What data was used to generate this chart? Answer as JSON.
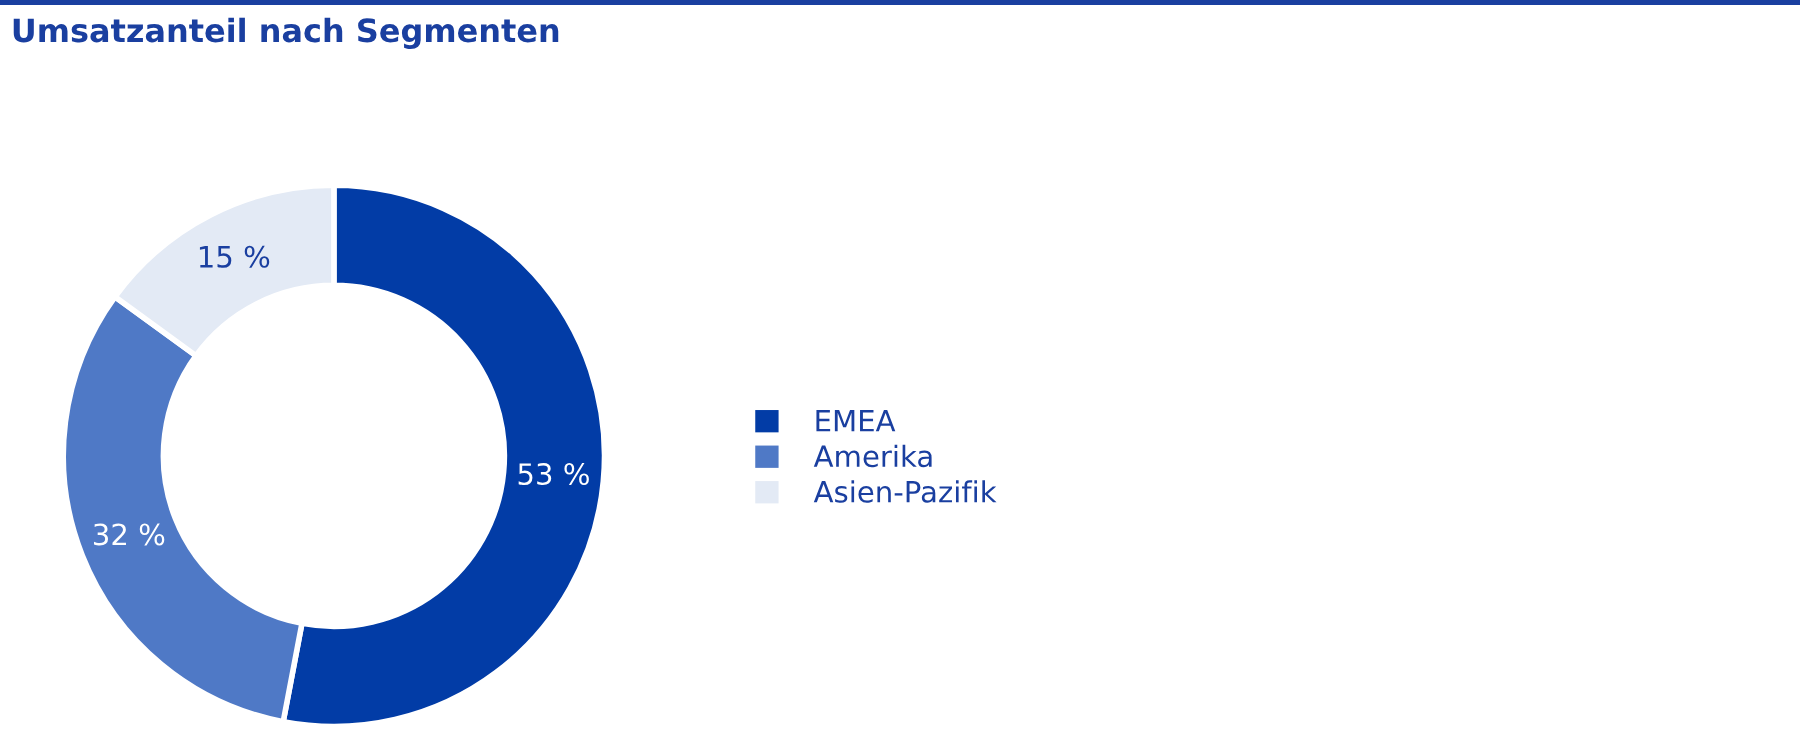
{
  "chart_data": {
    "type": "donut",
    "title": "Umsatzanteil nach Segmenten",
    "categories": [
      "EMEA",
      "Amerika",
      "Asien-Pazifik"
    ],
    "values": [
      53,
      32,
      15
    ],
    "value_labels": [
      "53 %",
      "32 %",
      "15 %"
    ],
    "colors": [
      "#023ca6",
      "#4f79c6",
      "#e3eaf5"
    ],
    "legend": "right"
  }
}
